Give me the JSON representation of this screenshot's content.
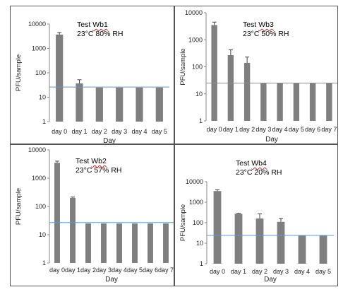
{
  "chart_data": [
    {
      "type": "bar",
      "test_prefix": "Test",
      "test_id": "Wb1",
      "temp": "23°C",
      "rh_value": "80%",
      "rh_unit": "RH",
      "ylabel": "PFU/sample",
      "xlabel": "Day",
      "yscale": "log",
      "ylim": [
        1,
        10000
      ],
      "yticks": [
        "1",
        "10",
        "100",
        "1000",
        "10000"
      ],
      "categories": [
        "day 0",
        "day 1",
        "day 2",
        "day 3",
        "day 4",
        "day 5"
      ],
      "values": [
        3700,
        37,
        25,
        25,
        25,
        25
      ],
      "error_upper": [
        4500,
        52,
        25,
        25,
        25,
        25
      ],
      "reference_line": 26,
      "bar_color": "#7f7f7f",
      "line_color": "#5b9bd5"
    },
    {
      "type": "bar",
      "test_prefix": "Test",
      "test_id": "Wb3",
      "temp": "23°C",
      "rh_value": "50%",
      "rh_unit": "RH",
      "ylabel": "PFU/sample",
      "xlabel": "Day",
      "yscale": "log",
      "ylim": [
        1,
        10000
      ],
      "yticks": [
        "1",
        "10",
        "100",
        "1000",
        "10000"
      ],
      "categories": [
        "day 0",
        "day 1",
        "day 2",
        "day 3",
        "day 4",
        "day 5",
        "day 6",
        "day 7"
      ],
      "values": [
        3500,
        270,
        140,
        25,
        25,
        25,
        25,
        25
      ],
      "error_upper": [
        4500,
        430,
        230,
        25,
        25,
        25,
        25,
        25
      ],
      "reference_line": 25,
      "bar_color": "#7f7f7f",
      "line_color": "#5b9bd5"
    },
    {
      "type": "bar",
      "test_prefix": "Test",
      "test_id": "Wb2",
      "temp": "23°C",
      "rh_value": "57%",
      "rh_unit": "RH",
      "ylabel": "PFU/sample",
      "xlabel": "Day",
      "yscale": "log",
      "ylim": [
        1,
        10000
      ],
      "yticks": [
        "1",
        "10",
        "100",
        "1000",
        "10000"
      ],
      "categories": [
        "day 0",
        "day 1",
        "day 2",
        "day 3",
        "day 4",
        "day 5",
        "day 6",
        "day 7"
      ],
      "values": [
        3500,
        200,
        25,
        25,
        25,
        25,
        25,
        25
      ],
      "error_upper": [
        4000,
        215,
        25,
        25,
        25,
        25,
        25,
        25
      ],
      "reference_line": 27,
      "bar_color": "#7f7f7f",
      "line_color": "#5b9bd5"
    },
    {
      "type": "bar",
      "test_prefix": "Test",
      "test_id": "Wb4",
      "temp": "23°C",
      "rh_value": "20%",
      "rh_unit": "RH",
      "ylabel": "PFU/sample",
      "xlabel": "Day",
      "yscale": "log",
      "ylim": [
        1,
        10000
      ],
      "yticks": [
        "1",
        "10",
        "100",
        "1000",
        "10000"
      ],
      "categories": [
        "day 0",
        "day 1",
        "day 2",
        "day 3",
        "day 4",
        "day 5"
      ],
      "values": [
        3500,
        270,
        160,
        110,
        25,
        25
      ],
      "error_upper": [
        4000,
        290,
        270,
        160,
        25,
        25
      ],
      "reference_line": 24,
      "bar_color": "#7f7f7f",
      "line_color": "#5b9bd5"
    }
  ]
}
